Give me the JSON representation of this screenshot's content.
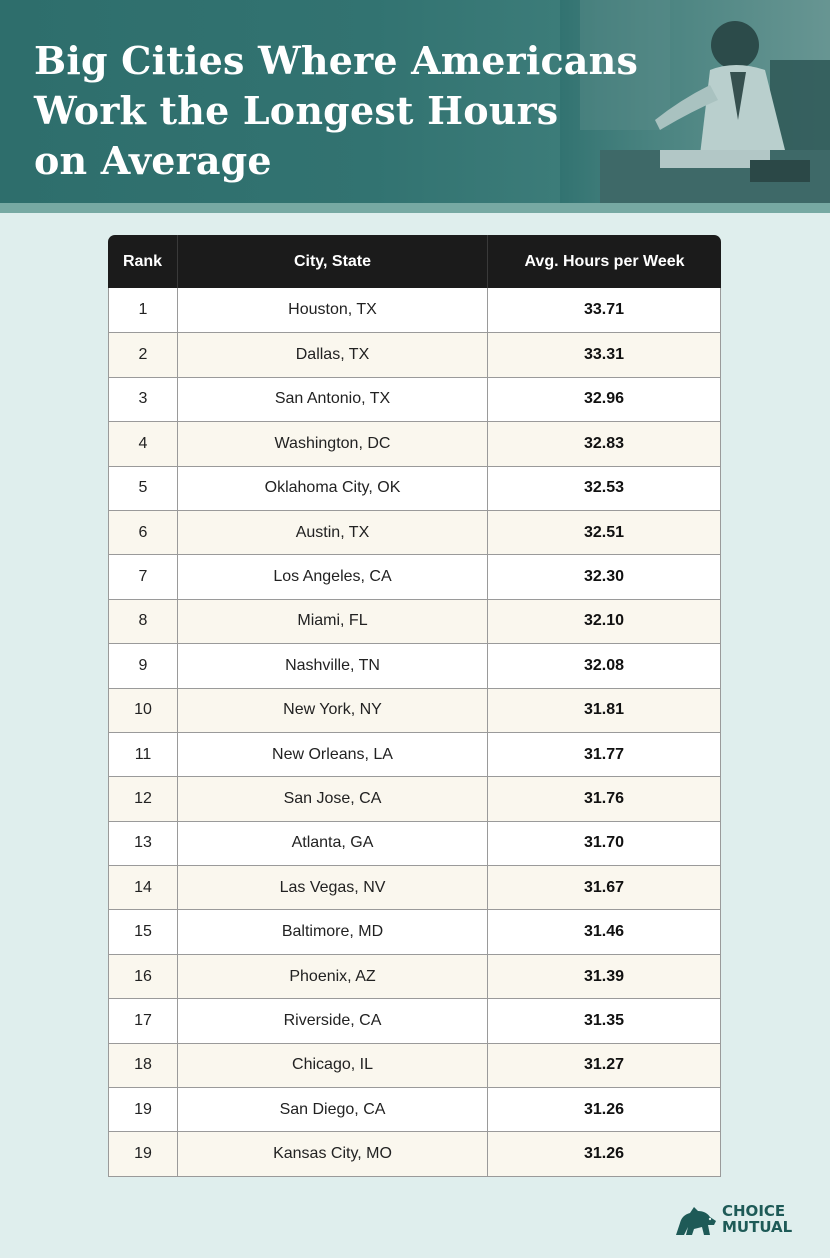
{
  "title_lines": [
    "Big Cities Where Americans",
    "Work the Longest Hours",
    "on Average"
  ],
  "colors": {
    "header": "#327371",
    "accent_strip": "#77a9a3",
    "background": "#dfeeed",
    "table_head": "#1b1b1b",
    "row_alt": "#faf7ee",
    "brand": "#1e5a57"
  },
  "chart_data": {
    "type": "table",
    "columns": [
      "Rank",
      "City, State",
      "Avg. Hours per Week"
    ],
    "rows": [
      [
        "1",
        "Houston, TX",
        "33.71"
      ],
      [
        "2",
        "Dallas, TX",
        "33.31"
      ],
      [
        "3",
        "San Antonio, TX",
        "32.96"
      ],
      [
        "4",
        "Washington, DC",
        "32.83"
      ],
      [
        "5",
        "Oklahoma City, OK",
        "32.53"
      ],
      [
        "6",
        "Austin, TX",
        "32.51"
      ],
      [
        "7",
        "Los Angeles, CA",
        "32.30"
      ],
      [
        "8",
        "Miami, FL",
        "32.10"
      ],
      [
        "9",
        "Nashville, TN",
        "32.08"
      ],
      [
        "10",
        "New York, NY",
        "31.81"
      ],
      [
        "11",
        "New Orleans, LA",
        "31.77"
      ],
      [
        "12",
        "San Jose, CA",
        "31.76"
      ],
      [
        "13",
        "Atlanta, GA",
        "31.70"
      ],
      [
        "14",
        "Las Vegas, NV",
        "31.67"
      ],
      [
        "15",
        "Baltimore, MD",
        "31.46"
      ],
      [
        "16",
        "Phoenix, AZ",
        "31.39"
      ],
      [
        "17",
        "Riverside, CA",
        "31.35"
      ],
      [
        "18",
        "Chicago, IL",
        "31.27"
      ],
      [
        "19",
        "San Diego, CA",
        "31.26"
      ],
      [
        "19",
        "Kansas City, MO",
        "31.26"
      ]
    ]
  },
  "logo": {
    "line1": "CHOICE",
    "line2": "MUTUAL",
    "icon": "bear-logo-icon"
  }
}
